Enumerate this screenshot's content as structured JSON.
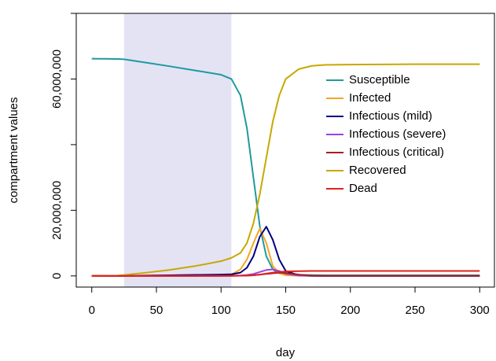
{
  "chart_data": {
    "type": "line",
    "xlabel": "day",
    "ylabel": "compartment values",
    "x": [
      0,
      10,
      20,
      25,
      40,
      60,
      80,
      100,
      108,
      115,
      120,
      125,
      130,
      135,
      140,
      145,
      150,
      160,
      170,
      180,
      200,
      250,
      300
    ],
    "shaded_region": [
      25,
      108
    ],
    "shade_color": "#e3e3f4",
    "series": [
      {
        "name": "Susceptible",
        "color": "#1f9a9e",
        "values": [
          66200000,
          66150000,
          66100000,
          66000000,
          65100000,
          63900000,
          62600000,
          61300000,
          60000000,
          55000000,
          45000000,
          30000000,
          15000000,
          6000000,
          2000000,
          800000,
          400000,
          300000,
          250000,
          200000,
          200000,
          200000,
          200000
        ]
      },
      {
        "name": "Infected",
        "color": "#f5a623",
        "values": [
          0,
          0,
          10000,
          20000,
          50000,
          100000,
          150000,
          250000,
          400000,
          2000000,
          5000000,
          10000000,
          14500000,
          10000000,
          3000000,
          800000,
          200000,
          50000,
          0,
          0,
          0,
          0,
          0
        ]
      },
      {
        "name": "Infectious (mild)",
        "color": "#000080",
        "values": [
          0,
          0,
          10000,
          30000,
          100000,
          200000,
          300000,
          400000,
          500000,
          1000000,
          2500000,
          6000000,
          12000000,
          15000000,
          11000000,
          5000000,
          1500000,
          200000,
          0,
          0,
          0,
          0,
          0
        ]
      },
      {
        "name": "Infectious (severe)",
        "color": "#a040e0",
        "values": [
          0,
          0,
          0,
          0,
          10000,
          20000,
          30000,
          50000,
          60000,
          150000,
          300000,
          600000,
          1200000,
          1800000,
          2000000,
          1500000,
          700000,
          100000,
          0,
          0,
          0,
          0,
          0
        ]
      },
      {
        "name": "Infectious (critical)",
        "color": "#a02020",
        "values": [
          0,
          0,
          0,
          0,
          0,
          10000,
          10000,
          20000,
          30000,
          60000,
          100000,
          200000,
          400000,
          600000,
          800000,
          1000000,
          900000,
          400000,
          100000,
          0,
          0,
          0,
          0
        ]
      },
      {
        "name": "Recovered",
        "color": "#c8a800",
        "values": [
          0,
          0,
          100000,
          300000,
          900000,
          1800000,
          3000000,
          4500000,
          5500000,
          7000000,
          10000000,
          16000000,
          25000000,
          36000000,
          47000000,
          55000000,
          60000000,
          63000000,
          64000000,
          64300000,
          64400000,
          64500000,
          64500000
        ]
      },
      {
        "name": "Dead",
        "color": "#e02020",
        "values": [
          0,
          0,
          0,
          0,
          0,
          10000,
          20000,
          30000,
          40000,
          60000,
          100000,
          200000,
          400000,
          700000,
          1000000,
          1200000,
          1350000,
          1450000,
          1500000,
          1500000,
          1500000,
          1500000,
          1500000
        ]
      }
    ],
    "xlim": [
      -12,
      312
    ],
    "xticks": [
      0,
      50,
      100,
      150,
      200,
      250,
      300
    ],
    "ylim": [
      -3400000,
      80000000
    ],
    "yticks": [
      0,
      {
        "value": 20000000,
        "label": "20,000,000"
      },
      {
        "value": 40000000,
        "label": null
      },
      {
        "value": 60000000,
        "label": "60,000,000"
      },
      {
        "value": 80000000,
        "label": null
      }
    ],
    "legend": "upper right",
    "grid": false
  }
}
